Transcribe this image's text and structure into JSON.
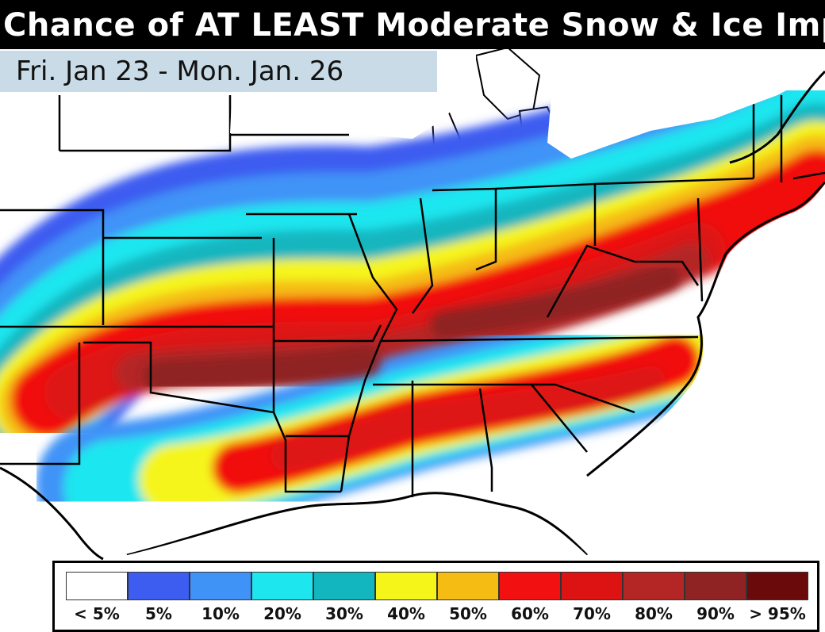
{
  "title": "Chance of AT LEAST Moderate Snow & Ice Impa",
  "date_range": "Fri. Jan 23 - Mon. Jan. 26",
  "legend": [
    {
      "label": "< 5%",
      "color": "#ffffff"
    },
    {
      "label": "5%",
      "color": "#3d5cf0"
    },
    {
      "label": "10%",
      "color": "#3f93f7"
    },
    {
      "label": "20%",
      "color": "#1ee6ef"
    },
    {
      "label": "30%",
      "color": "#12b6bf"
    },
    {
      "label": "40%",
      "color": "#f5f51a"
    },
    {
      "label": "50%",
      "color": "#f5bc14"
    },
    {
      "label": "60%",
      "color": "#f21010"
    },
    {
      "label": "70%",
      "color": "#dd1212"
    },
    {
      "label": "80%",
      "color": "#b42626"
    },
    {
      "label": "90%",
      "color": "#8f2222"
    },
    {
      "label": "> 95%",
      "color": "#6a0a0a"
    }
  ]
}
